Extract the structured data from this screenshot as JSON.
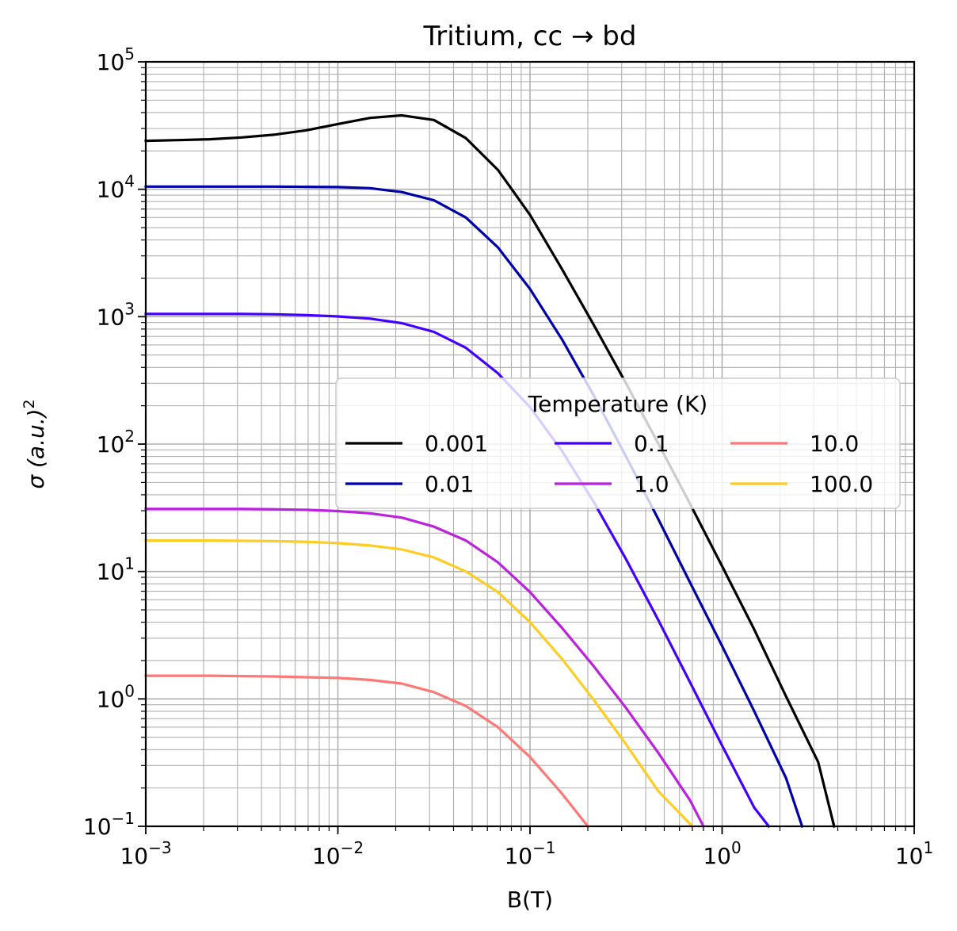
{
  "chart_data": {
    "type": "line",
    "title": "Tritium, cc → bd",
    "xlabel": "B(T)",
    "ylabel": "σ (a.u.)",
    "ylabel_sup": "2",
    "x_scale": "log",
    "y_scale": "log",
    "xlim": [
      0.001,
      10
    ],
    "ylim": [
      0.1,
      100000
    ],
    "grid": "major and minor",
    "x_ticks": [
      {
        "value": 0.001,
        "base": "10",
        "exp": "−3"
      },
      {
        "value": 0.01,
        "base": "10",
        "exp": "−2"
      },
      {
        "value": 0.1,
        "base": "10",
        "exp": "−1"
      },
      {
        "value": 1,
        "base": "10",
        "exp": "0"
      },
      {
        "value": 10,
        "base": "10",
        "exp": "1"
      }
    ],
    "y_ticks": [
      {
        "value": 0.1,
        "base": "10",
        "exp": "−1"
      },
      {
        "value": 1,
        "base": "10",
        "exp": "0"
      },
      {
        "value": 10,
        "base": "10",
        "exp": "1"
      },
      {
        "value": 100,
        "base": "10",
        "exp": "2"
      },
      {
        "value": 1000,
        "base": "10",
        "exp": "3"
      },
      {
        "value": 10000,
        "base": "10",
        "exp": "4"
      },
      {
        "value": 100000,
        "base": "10",
        "exp": "5"
      }
    ],
    "legend": {
      "title": "Temperature (K)",
      "placement": "center-right",
      "columns": 3
    },
    "series": [
      {
        "name": "0.001",
        "color": "#000000",
        "x": [
          0.001,
          0.00147,
          0.00215,
          0.00316,
          0.00464,
          0.00681,
          0.01,
          0.0147,
          0.0215,
          0.0316,
          0.0464,
          0.0681,
          0.1,
          0.147,
          0.215,
          0.316,
          0.464,
          0.681,
          1.0,
          1.47,
          2.15,
          3.16,
          3.83
        ],
        "y": [
          24000,
          24300,
          24700,
          25500,
          26800,
          29000,
          32500,
          36300,
          38000,
          35000,
          25200,
          14200,
          6300,
          2350,
          860,
          300,
          102,
          34,
          11,
          3.5,
          1.05,
          0.32,
          0.1
        ]
      },
      {
        "name": "0.01",
        "color": "#0000aa",
        "x": [
          0.001,
          0.00147,
          0.00215,
          0.00316,
          0.00464,
          0.00681,
          0.01,
          0.0147,
          0.0215,
          0.0316,
          0.0464,
          0.0681,
          0.1,
          0.147,
          0.215,
          0.316,
          0.464,
          0.681,
          1.0,
          1.47,
          2.15,
          2.61
        ],
        "y": [
          10500,
          10500,
          10500,
          10500,
          10500,
          10450,
          10400,
          10200,
          9500,
          8200,
          6000,
          3500,
          1650,
          660,
          240,
          80,
          26,
          8.2,
          2.6,
          0.8,
          0.24,
          0.1
        ]
      },
      {
        "name": "0.1",
        "color": "#4400ff",
        "x": [
          0.001,
          0.00147,
          0.00215,
          0.00316,
          0.00464,
          0.00681,
          0.01,
          0.0147,
          0.0215,
          0.0316,
          0.0464,
          0.0681,
          0.1,
          0.147,
          0.215,
          0.316,
          0.464,
          0.681,
          1.0,
          1.47,
          1.75
        ],
        "y": [
          1050,
          1050,
          1050,
          1050,
          1045,
          1030,
          1005,
          965,
          890,
          760,
          570,
          360,
          195,
          88,
          35,
          12.5,
          4.2,
          1.35,
          0.43,
          0.14,
          0.1
        ]
      },
      {
        "name": "1.0",
        "color": "#bb22dd",
        "x": [
          0.001,
          0.00147,
          0.00215,
          0.00316,
          0.00464,
          0.00681,
          0.01,
          0.0147,
          0.0215,
          0.0316,
          0.0464,
          0.0681,
          0.1,
          0.147,
          0.215,
          0.316,
          0.464,
          0.681,
          0.8
        ],
        "y": [
          31,
          31,
          31,
          31,
          30.8,
          30.5,
          29.8,
          28.6,
          26.5,
          22.5,
          17.5,
          11.8,
          6.9,
          3.6,
          1.8,
          0.85,
          0.38,
          0.16,
          0.1
        ]
      },
      {
        "name": "10.0",
        "color": "#ff7777",
        "x": [
          0.001,
          0.00147,
          0.00215,
          0.00316,
          0.00464,
          0.00681,
          0.01,
          0.0147,
          0.0215,
          0.0316,
          0.0464,
          0.0681,
          0.1,
          0.147,
          0.2
        ],
        "y": [
          1.52,
          1.52,
          1.52,
          1.51,
          1.5,
          1.48,
          1.46,
          1.41,
          1.32,
          1.13,
          0.88,
          0.6,
          0.35,
          0.18,
          0.1
        ]
      },
      {
        "name": "100.0",
        "color": "#ffcc22",
        "x": [
          0.001,
          0.00147,
          0.00215,
          0.00316,
          0.00464,
          0.00681,
          0.01,
          0.0147,
          0.0215,
          0.0316,
          0.0464,
          0.0681,
          0.1,
          0.147,
          0.215,
          0.316,
          0.464,
          0.7
        ],
        "y": [
          17.5,
          17.5,
          17.5,
          17.4,
          17.3,
          17.1,
          16.7,
          16.0,
          14.9,
          12.9,
          10.0,
          6.9,
          4.0,
          2.05,
          0.98,
          0.44,
          0.19,
          0.1
        ]
      }
    ]
  }
}
